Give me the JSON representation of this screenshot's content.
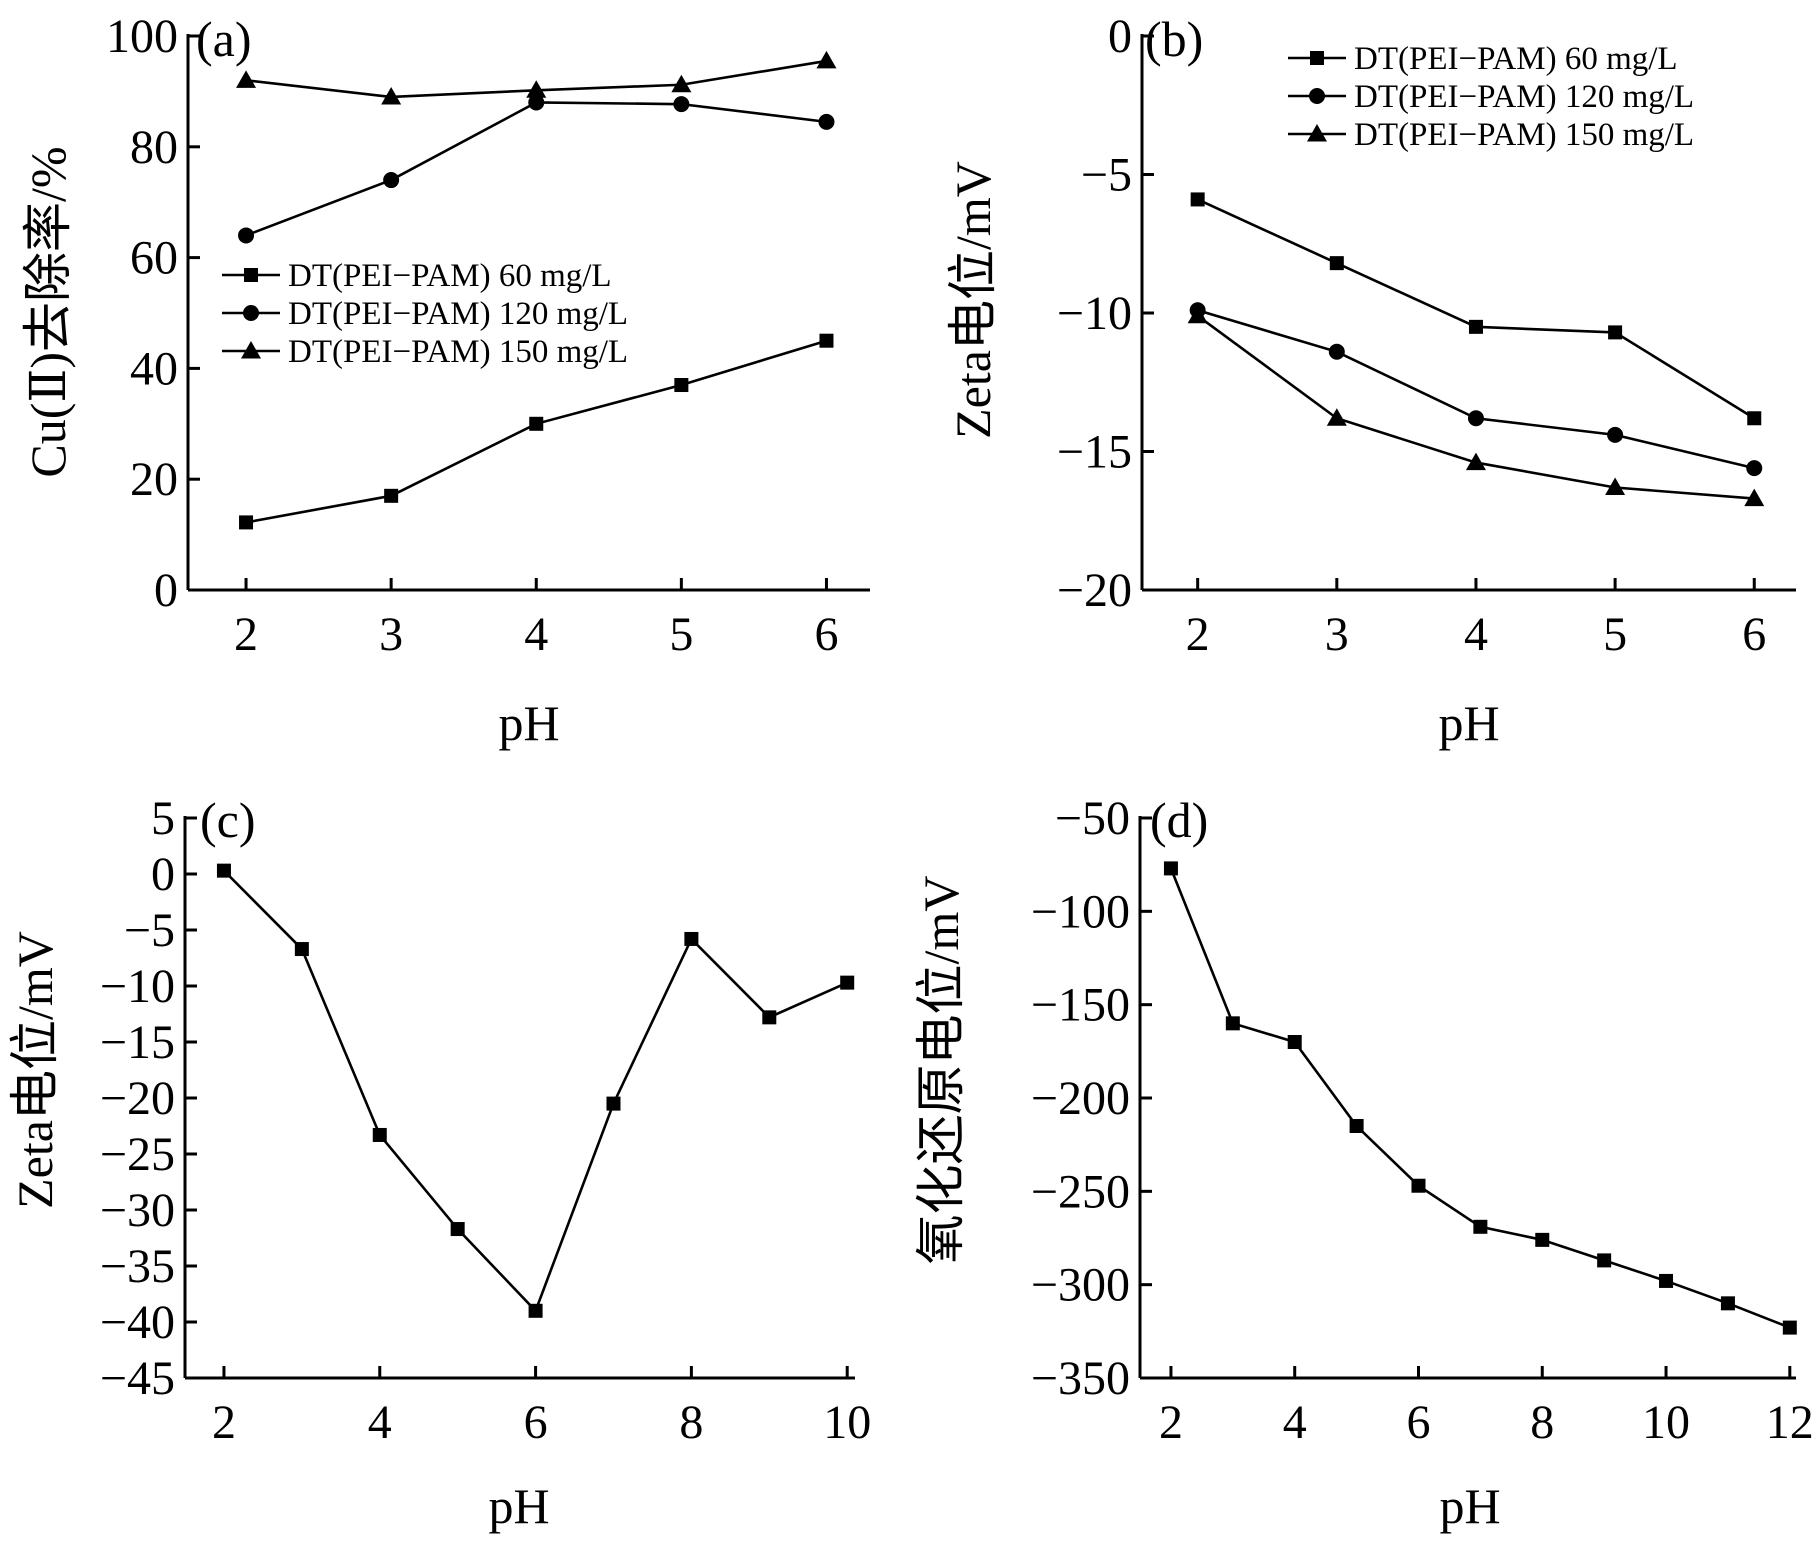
{
  "chart_data": [
    {
      "type": "line",
      "panel_label": "(a)",
      "xlabel": "pH",
      "ylabel": "Cu(Ⅱ)去除率/%",
      "xlim": [
        1.6,
        6.3
      ],
      "ylim": [
        0,
        100
      ],
      "xticks": [
        "2",
        "3",
        "4",
        "5",
        "6"
      ],
      "yticks": [
        "0",
        "20",
        "40",
        "60",
        "80",
        "100"
      ],
      "legend_position": "center-left",
      "x": [
        2,
        3,
        4,
        5,
        6
      ],
      "series": [
        {
          "name": "DT(PEI−PAM)  60 mg/L",
          "marker": "square",
          "values": [
            12.2,
            17.0,
            30.0,
            37.0,
            45.0
          ]
        },
        {
          "name": "DT(PEI−PAM)  120 mg/L",
          "marker": "circle",
          "values": [
            64.0,
            74.0,
            88.0,
            87.7,
            84.5
          ]
        },
        {
          "name": "DT(PEI−PAM)  150 mg/L",
          "marker": "triangle",
          "values": [
            92.0,
            89.0,
            90.2,
            91.2,
            95.5
          ]
        }
      ]
    },
    {
      "type": "line",
      "panel_label": "(b)",
      "xlabel": "pH",
      "ylabel": "Zeta电位/mV",
      "xlim": [
        1.6,
        6.3
      ],
      "ylim": [
        -20,
        0
      ],
      "xticks": [
        "2",
        "3",
        "4",
        "5",
        "6"
      ],
      "yticks": [
        "0",
        "−5",
        "−10",
        "−15",
        "−20"
      ],
      "legend_position": "top-right",
      "x": [
        2,
        3,
        4,
        5,
        6
      ],
      "series": [
        {
          "name": "DT(PEI−PAM)  60 mg/L",
          "marker": "square",
          "values": [
            -5.9,
            -8.2,
            -10.5,
            -10.7,
            -13.8
          ]
        },
        {
          "name": "DT(PEI−PAM)  120 mg/L",
          "marker": "circle",
          "values": [
            -9.9,
            -11.4,
            -13.8,
            -14.4,
            -15.6
          ]
        },
        {
          "name": "DT(PEI−PAM)  150 mg/L",
          "marker": "triangle",
          "values": [
            -10.1,
            -13.8,
            -15.4,
            -16.3,
            -16.7
          ]
        }
      ]
    },
    {
      "type": "line",
      "panel_label": "(c)",
      "xlabel": "pH",
      "ylabel": "Zeta电位/mV",
      "xlim": [
        1.5,
        10.1
      ],
      "ylim": [
        -45,
        5
      ],
      "xticks": [
        "2",
        "4",
        "6",
        "8",
        "10"
      ],
      "yticks": [
        "5",
        "0",
        "−5",
        "−10",
        "−15",
        "−20",
        "−25",
        "−30",
        "−35",
        "−40",
        "−45"
      ],
      "x": [
        2,
        3,
        4,
        5,
        6,
        7,
        8,
        9,
        10
      ],
      "series": [
        {
          "marker": "square",
          "values": [
            0.3,
            -6.7,
            -23.3,
            -31.7,
            -39.0,
            -20.5,
            -5.8,
            -12.8,
            -9.7
          ]
        }
      ]
    },
    {
      "type": "line",
      "panel_label": "(d)",
      "xlabel": "pH",
      "ylabel": "氧化还原电位/mV",
      "xlim": [
        1.5,
        12.1
      ],
      "ylim": [
        -350,
        -50
      ],
      "xticks": [
        "2",
        "4",
        "6",
        "8",
        "10",
        "12"
      ],
      "yticks": [
        "−50",
        "−100",
        "−150",
        "−200",
        "−250",
        "−300",
        "−350"
      ],
      "x": [
        2,
        3,
        4,
        5,
        6,
        7,
        8,
        9,
        10,
        11,
        12
      ],
      "series": [
        {
          "marker": "square",
          "values": [
            -77,
            -160,
            -170,
            -215,
            -247,
            -269,
            -276,
            -287,
            -298,
            -310,
            -323
          ]
        }
      ]
    }
  ]
}
